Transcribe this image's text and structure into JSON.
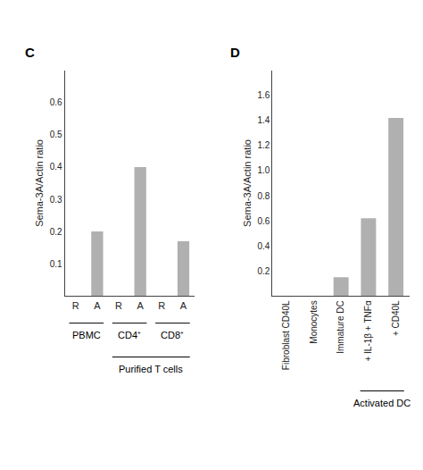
{
  "chart_data": [
    {
      "type": "bar",
      "title": "C",
      "categories": [
        "R",
        "A",
        "R",
        "A",
        "R",
        "A"
      ],
      "values": [
        0,
        0.2,
        0,
        0.4,
        0,
        0.17
      ],
      "color": "#b0b0b0",
      "ylabel": "Sema-3A/Actin ratio",
      "ylim": [
        0,
        0.7
      ],
      "yticks": [
        0.1,
        0.2,
        0.3,
        0.4,
        0.5,
        0.6
      ],
      "grid": false,
      "annotations": [
        {
          "text": "PBMC",
          "x": [
            0,
            1
          ]
        },
        {
          "text": "CD4⁺",
          "x": [
            2,
            3
          ]
        },
        {
          "text": "CD8⁺",
          "x": [
            4,
            5
          ]
        },
        {
          "text": "Purified T cells",
          "x": [
            2,
            5
          ]
        }
      ]
    },
    {
      "type": "bar",
      "title": "D",
      "categories": [
        "Fibroblast CD40L",
        "Monocytes",
        "Immature DC",
        "+ IL-1β + TNFα",
        "+ CD40L"
      ],
      "values": [
        0,
        0,
        0.15,
        0.62,
        1.42
      ],
      "color": "#b0b0b0",
      "ylabel": "Sema-3A/Actin ratio",
      "ylim": [
        0,
        1.8
      ],
      "yticks": [
        0.2,
        0.4,
        0.6,
        0.8,
        {
          "value": 1.0,
          "label": "1.0"
        },
        1.2,
        1.4,
        1.6
      ],
      "grid": false,
      "annotations": [
        {
          "text": "Activated DC",
          "x": [
            3,
            4
          ]
        }
      ]
    }
  ]
}
